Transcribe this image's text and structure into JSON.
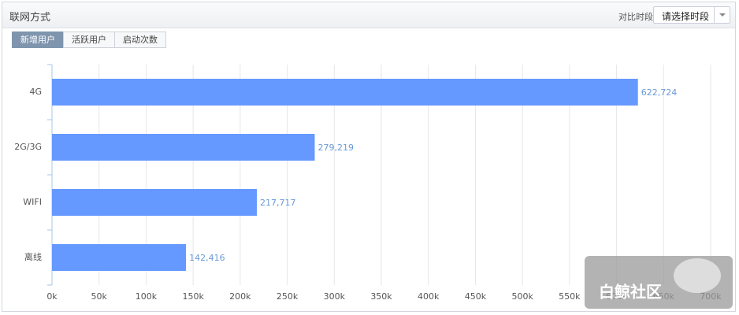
{
  "header": {
    "title": "联网方式",
    "compare_label": "对比时段:",
    "dropdown": "请选择时段"
  },
  "tabs": [
    "新增用户",
    "活跃用户",
    "启动次数"
  ],
  "watermark": {
    "text": "白鲸社区"
  },
  "chart_data": {
    "type": "bar",
    "orientation": "horizontal",
    "categories": [
      "4G",
      "2G/3G",
      "WIFI",
      "离线"
    ],
    "values": [
      622724,
      279219,
      217717,
      142416
    ],
    "value_labels": [
      "622,724",
      "279,219",
      "217,717",
      "142,416"
    ],
    "color": "#6699ff",
    "xlim": [
      0,
      700000
    ],
    "xticks": [
      {
        "value": 0,
        "label": "0k"
      },
      {
        "value": 50000,
        "label": "50k"
      },
      {
        "value": 100000,
        "label": "100k"
      },
      {
        "value": 150000,
        "label": "150k"
      },
      {
        "value": 200000,
        "label": "200k"
      },
      {
        "value": 250000,
        "label": "250k"
      },
      {
        "value": 300000,
        "label": "300k"
      },
      {
        "value": 350000,
        "label": "350k"
      },
      {
        "value": 400000,
        "label": "400k"
      },
      {
        "value": 450000,
        "label": "450k"
      },
      {
        "value": 500000,
        "label": "500k"
      },
      {
        "value": 550000,
        "label": "550k"
      },
      {
        "value": 600000,
        "label": "600k"
      },
      {
        "value": 650000,
        "label": "650k"
      },
      {
        "value": 700000,
        "label": "700k"
      }
    ],
    "grid": true
  }
}
